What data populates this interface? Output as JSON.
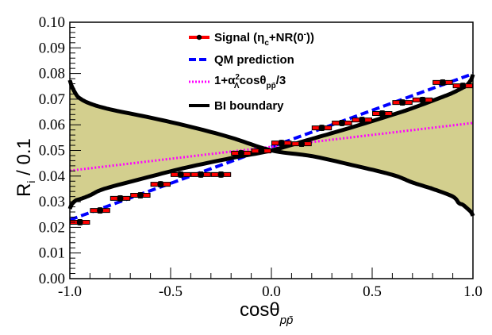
{
  "chart_data": {
    "type": "scatter",
    "title": "",
    "xlabel": "cosθ",
    "xlabel_sub": "pp̄",
    "ylabel": "R",
    "ylabel_sub": "i",
    "ylabel_suffix": " / 0.1",
    "xlim": [
      -1.0,
      1.0
    ],
    "ylim": [
      0.0,
      0.1
    ],
    "x_ticks": [
      -1.0,
      -0.5,
      0.0,
      0.5,
      1.0
    ],
    "x_tick_labels": [
      "-1.0",
      "-0.5",
      "0.0",
      "0.5",
      "1.0"
    ],
    "y_ticks": [
      0.0,
      0.01,
      0.02,
      0.03,
      0.04,
      0.05,
      0.06,
      0.07,
      0.08,
      0.09,
      0.1
    ],
    "y_tick_labels": [
      "0.00",
      "0.01",
      "0.02",
      "0.03",
      "0.04",
      "0.05",
      "0.06",
      "0.07",
      "0.08",
      "0.09",
      "0.10"
    ],
    "grid": false,
    "legend_position": "top-center",
    "legend": [
      {
        "key": "signal",
        "label": "Signal (η",
        "sub": "c",
        "label2": "+NR(0",
        "sup": "-",
        "label3": "))",
        "color": "#ff0000",
        "marker": "#000000"
      },
      {
        "key": "qm",
        "label": "QM prediction",
        "color": "#0000ff",
        "style": "dashed"
      },
      {
        "key": "alpha",
        "label": "1+α",
        "sup": "2",
        "sub": "Λ",
        "label2": "cosθ",
        "sub2": "pp̄",
        "label3": "/3",
        "color": "#ff00ff",
        "style": "dotted"
      },
      {
        "key": "bi",
        "label": "BI boundary",
        "color": "#000000",
        "style": "solid"
      }
    ],
    "series": [
      {
        "name": "Signal (ηc+NR(0-))",
        "type": "errorbar",
        "color": "#ff0000",
        "marker_color": "#000000",
        "x": [
          -0.95,
          -0.85,
          -0.75,
          -0.65,
          -0.55,
          -0.45,
          -0.35,
          -0.25,
          -0.15,
          -0.05,
          0.05,
          0.15,
          0.25,
          0.35,
          0.45,
          0.55,
          0.65,
          0.75,
          0.85,
          0.95
        ],
        "y": [
          0.022,
          0.0266,
          0.0313,
          0.0325,
          0.0368,
          0.0406,
          0.0406,
          0.0406,
          0.0489,
          0.0498,
          0.0529,
          0.0526,
          0.0588,
          0.0607,
          0.0619,
          0.0644,
          0.0687,
          0.0697,
          0.0765,
          0.0752
        ],
        "x_err": 0.05,
        "y_err": 0.0012
      },
      {
        "name": "QM prediction",
        "type": "line",
        "color": "#0000ff",
        "style": "dashed",
        "x": [
          -1.0,
          1.0
        ],
        "y": [
          0.0229,
          0.0799
        ]
      },
      {
        "name": "1+α²Λcosθpp̄/3",
        "type": "line",
        "color": "#ff00ff",
        "style": "dotted",
        "x": [
          -1.0,
          1.0
        ],
        "y": [
          0.0421,
          0.0607
        ]
      },
      {
        "name": "BI boundary upper",
        "type": "line",
        "color": "#000000",
        "style": "solid",
        "x": [
          -1.0,
          -0.99,
          -0.97,
          -0.95,
          -0.9,
          -0.8,
          -0.6,
          -0.4,
          -0.2,
          0.0,
          0.2,
          0.4,
          0.6,
          0.7,
          0.8,
          0.9,
          0.93,
          0.95,
          0.97,
          0.99,
          1.0
        ],
        "y": [
          0.0774,
          0.075,
          0.072,
          0.0703,
          0.0683,
          0.066,
          0.0628,
          0.0592,
          0.055,
          0.05,
          0.0478,
          0.0443,
          0.0405,
          0.0375,
          0.035,
          0.032,
          0.0295,
          0.0288,
          0.0275,
          0.026,
          0.0245
        ]
      },
      {
        "name": "BI boundary lower",
        "type": "line",
        "color": "#000000",
        "style": "solid",
        "x": [
          -1.0,
          -0.99,
          -0.97,
          -0.95,
          -0.9,
          -0.83,
          -0.64,
          -0.44,
          -0.2,
          0.0,
          0.2,
          0.39,
          0.62,
          0.7,
          0.85,
          0.9,
          0.95,
          0.97,
          0.99,
          1.0
        ],
        "y": [
          0.0272,
          0.029,
          0.0305,
          0.031,
          0.0325,
          0.035,
          0.039,
          0.043,
          0.047,
          0.05,
          0.0545,
          0.0588,
          0.0644,
          0.0665,
          0.0709,
          0.0725,
          0.0745,
          0.0755,
          0.0775,
          0.0796
        ]
      }
    ],
    "fill": {
      "name": "BI allowed region",
      "color": "#d3cf8e",
      "between": [
        "BI boundary upper",
        "BI boundary lower"
      ]
    }
  }
}
